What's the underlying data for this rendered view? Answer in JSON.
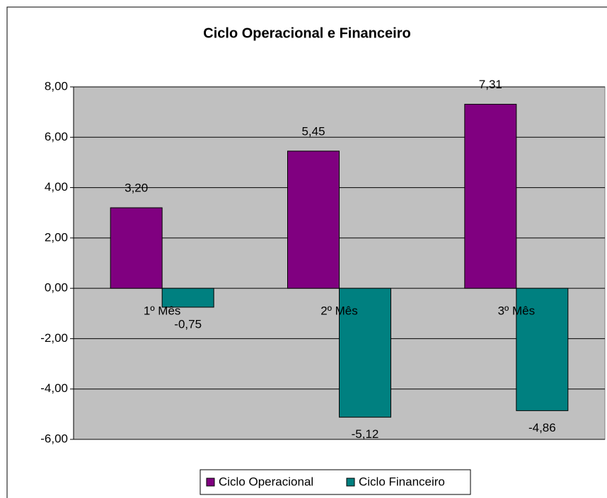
{
  "chart_data": {
    "type": "bar",
    "title": "Ciclo Operacional e Financeiro",
    "categories": [
      "1º Mês",
      "2º Mês",
      "3º Mês"
    ],
    "series": [
      {
        "name": "Ciclo Operacional",
        "color": "#800080",
        "values": [
          3.2,
          5.45,
          7.31
        ],
        "value_labels": [
          "3,20",
          "5,45",
          "7,31"
        ]
      },
      {
        "name": "Ciclo Financeiro",
        "color": "#008080",
        "values": [
          -0.75,
          -5.12,
          -4.86
        ],
        "value_labels": [
          "-0,75",
          "-5,12",
          "-4,86"
        ]
      }
    ],
    "ylim": [
      -6,
      8
    ],
    "yticks": [
      {
        "value": -6,
        "label": "-6,00"
      },
      {
        "value": -4,
        "label": "-4,00"
      },
      {
        "value": -2,
        "label": "-2,00"
      },
      {
        "value": 0,
        "label": "0,00"
      },
      {
        "value": 2,
        "label": "2,00"
      },
      {
        "value": 4,
        "label": "4,00"
      },
      {
        "value": 6,
        "label": "6,00"
      },
      {
        "value": 8,
        "label": "8,00"
      }
    ],
    "grid": true,
    "legend": "bottom"
  }
}
